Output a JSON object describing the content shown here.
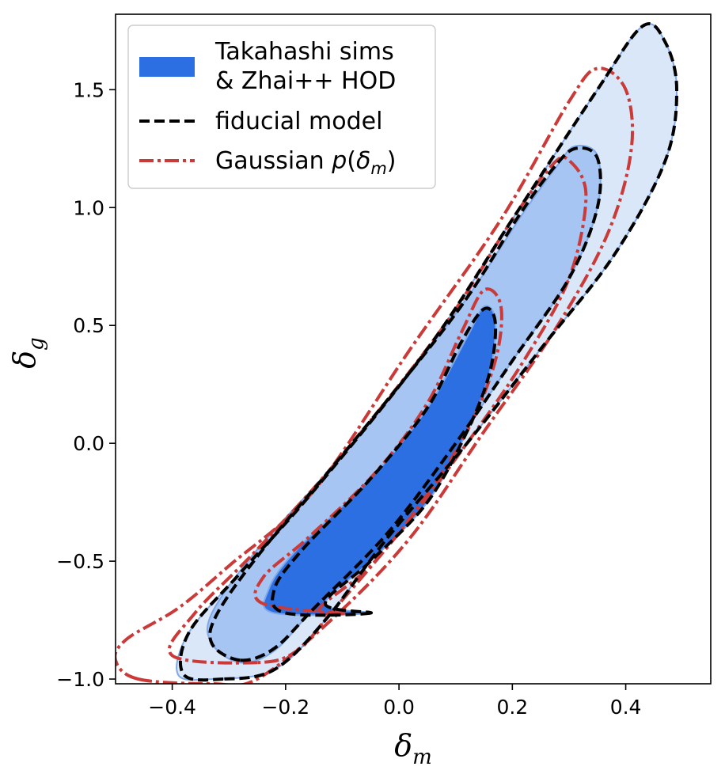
{
  "chart_data": {
    "type": "contour",
    "xlabel": "δm",
    "ylabel": "δg",
    "xlim": [
      -0.5,
      0.55
    ],
    "ylim": [
      -1.02,
      1.82
    ],
    "xticks": [
      -0.4,
      -0.2,
      0.0,
      0.2,
      0.4
    ],
    "yticks": [
      -1.0,
      -0.5,
      0.0,
      0.5,
      1.0,
      1.5
    ],
    "xtick_labels": [
      "−0.4",
      "−0.2",
      "0.0",
      "0.2",
      "0.4"
    ],
    "ytick_labels": [
      "−1.0",
      "−0.5",
      "0.0",
      "0.5",
      "1.0",
      "1.5"
    ],
    "grid": false,
    "legend_position": "top-left",
    "series": [
      {
        "name": "Takahashi sims & Zhai++ HOD",
        "legend_lines": [
          "Takahashi sims",
          "& Zhai++ HOD"
        ],
        "style": "filled",
        "colors": [
          "#2b6fe3",
          "#a7c5f2",
          "#dae7f8"
        ],
        "edge_color": "#7fa8e8",
        "contours": [
          [
            [
              -0.05,
              -0.72
            ],
            [
              -0.22,
              -0.72
            ],
            [
              -0.23,
              -0.62
            ],
            [
              -0.18,
              -0.45
            ],
            [
              -0.05,
              -0.15
            ],
            [
              0.05,
              0.15
            ],
            [
              0.12,
              0.45
            ],
            [
              0.15,
              0.58
            ],
            [
              0.17,
              0.52
            ],
            [
              0.16,
              0.3
            ],
            [
              0.12,
              0.05
            ],
            [
              0.05,
              -0.25
            ],
            [
              -0.05,
              -0.5
            ],
            [
              -0.13,
              -0.68
            ]
          ],
          [
            [
              -0.28,
              -0.93
            ],
            [
              -0.33,
              -0.85
            ],
            [
              -0.33,
              -0.72
            ],
            [
              -0.25,
              -0.45
            ],
            [
              -0.1,
              -0.05
            ],
            [
              0.1,
              0.55
            ],
            [
              0.22,
              0.98
            ],
            [
              0.28,
              1.18
            ],
            [
              0.31,
              1.26
            ],
            [
              0.35,
              1.22
            ],
            [
              0.35,
              1.0
            ],
            [
              0.3,
              0.7
            ],
            [
              0.2,
              0.35
            ],
            [
              0.1,
              0.0
            ],
            [
              -0.02,
              -0.38
            ],
            [
              -0.15,
              -0.7
            ],
            [
              -0.22,
              -0.88
            ]
          ],
          [
            [
              -0.33,
              -1.0
            ],
            [
              -0.39,
              -0.98
            ],
            [
              -0.37,
              -0.8
            ],
            [
              -0.28,
              -0.55
            ],
            [
              -0.15,
              -0.2
            ],
            [
              0.05,
              0.4
            ],
            [
              0.2,
              0.95
            ],
            [
              0.35,
              1.5
            ],
            [
              0.43,
              1.77
            ],
            [
              0.47,
              1.7
            ],
            [
              0.49,
              1.5
            ],
            [
              0.47,
              1.2
            ],
            [
              0.38,
              0.8
            ],
            [
              0.25,
              0.4
            ],
            [
              0.12,
              0.0
            ],
            [
              -0.02,
              -0.4
            ],
            [
              -0.13,
              -0.75
            ],
            [
              -0.22,
              -0.96
            ]
          ]
        ]
      },
      {
        "name": "fiducial model",
        "style": "dashed",
        "color": "#000000",
        "contours": [
          [
            [
              -0.05,
              -0.72
            ],
            [
              -0.2,
              -0.72
            ],
            [
              -0.22,
              -0.62
            ],
            [
              -0.17,
              -0.45
            ],
            [
              -0.05,
              -0.15
            ],
            [
              0.05,
              0.15
            ],
            [
              0.11,
              0.43
            ],
            [
              0.15,
              0.57
            ],
            [
              0.17,
              0.51
            ],
            [
              0.16,
              0.3
            ],
            [
              0.12,
              0.05
            ],
            [
              0.05,
              -0.25
            ],
            [
              -0.05,
              -0.5
            ],
            [
              -0.13,
              -0.68
            ]
          ],
          [
            [
              -0.28,
              -0.92
            ],
            [
              -0.33,
              -0.85
            ],
            [
              -0.32,
              -0.72
            ],
            [
              -0.24,
              -0.45
            ],
            [
              -0.1,
              -0.05
            ],
            [
              0.1,
              0.55
            ],
            [
              0.21,
              0.96
            ],
            [
              0.27,
              1.16
            ],
            [
              0.31,
              1.25
            ],
            [
              0.35,
              1.21
            ],
            [
              0.35,
              1.0
            ],
            [
              0.3,
              0.7
            ],
            [
              0.2,
              0.35
            ],
            [
              0.1,
              0.0
            ],
            [
              -0.02,
              -0.38
            ],
            [
              -0.15,
              -0.7
            ],
            [
              -0.22,
              -0.87
            ]
          ],
          [
            [
              -0.31,
              -1.0
            ],
            [
              -0.38,
              -0.98
            ],
            [
              -0.37,
              -0.8
            ],
            [
              -0.28,
              -0.55
            ],
            [
              -0.15,
              -0.2
            ],
            [
              0.05,
              0.4
            ],
            [
              0.2,
              0.95
            ],
            [
              0.35,
              1.5
            ],
            [
              0.43,
              1.77
            ],
            [
              0.47,
              1.7
            ],
            [
              0.49,
              1.5
            ],
            [
              0.47,
              1.2
            ],
            [
              0.38,
              0.8
            ],
            [
              0.25,
              0.4
            ],
            [
              0.12,
              0.0
            ],
            [
              -0.02,
              -0.4
            ],
            [
              -0.13,
              -0.75
            ],
            [
              -0.22,
              -0.96
            ]
          ]
        ]
      },
      {
        "name": "Gaussian p(δm)",
        "style": "dashdot",
        "color": "#c93a38",
        "contours": [
          [
            [
              -0.1,
              -0.72
            ],
            [
              -0.24,
              -0.68
            ],
            [
              -0.24,
              -0.57
            ],
            [
              -0.16,
              -0.4
            ],
            [
              -0.04,
              -0.12
            ],
            [
              0.05,
              0.17
            ],
            [
              0.11,
              0.47
            ],
            [
              0.15,
              0.65
            ],
            [
              0.18,
              0.58
            ],
            [
              0.17,
              0.35
            ],
            [
              0.12,
              0.05
            ],
            [
              0.04,
              -0.25
            ],
            [
              -0.05,
              -0.52
            ],
            [
              -0.14,
              -0.7
            ]
          ],
          [
            [
              -0.25,
              -0.93
            ],
            [
              -0.4,
              -0.9
            ],
            [
              -0.36,
              -0.72
            ],
            [
              -0.25,
              -0.45
            ],
            [
              -0.1,
              -0.05
            ],
            [
              0.08,
              0.5
            ],
            [
              0.2,
              0.95
            ],
            [
              0.27,
              1.18
            ],
            [
              0.3,
              1.2
            ],
            [
              0.33,
              1.05
            ],
            [
              0.3,
              0.7
            ],
            [
              0.22,
              0.35
            ],
            [
              0.12,
              0.0
            ],
            [
              0.0,
              -0.38
            ],
            [
              -0.12,
              -0.72
            ],
            [
              -0.18,
              -0.88
            ]
          ],
          [
            [
              -0.46,
              -1.0
            ],
            [
              -0.5,
              -0.92
            ],
            [
              -0.48,
              -0.83
            ],
            [
              -0.39,
              -0.7
            ],
            [
              -0.3,
              -0.52
            ],
            [
              -0.15,
              -0.2
            ],
            [
              0.02,
              0.4
            ],
            [
              0.18,
              0.95
            ],
            [
              0.3,
              1.45
            ],
            [
              0.35,
              1.59
            ],
            [
              0.4,
              1.5
            ],
            [
              0.41,
              1.25
            ],
            [
              0.37,
              0.9
            ],
            [
              0.28,
              0.5
            ],
            [
              0.15,
              0.05
            ],
            [
              0.02,
              -0.4
            ],
            [
              -0.12,
              -0.75
            ],
            [
              -0.25,
              -1.0
            ],
            [
              -0.33,
              -1.02
            ]
          ]
        ]
      }
    ]
  }
}
